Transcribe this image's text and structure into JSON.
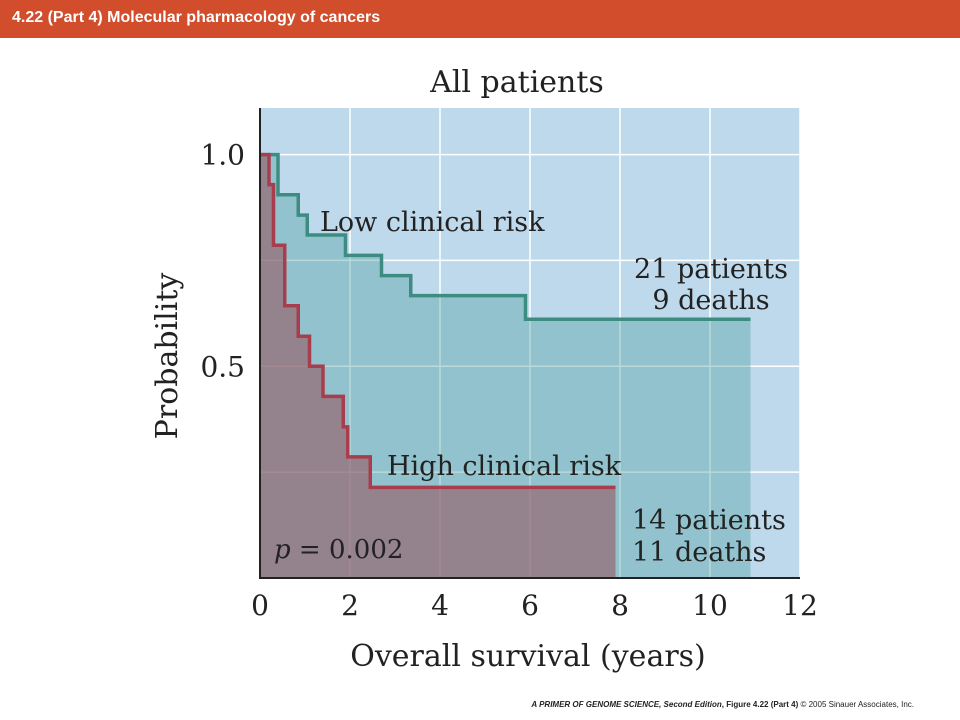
{
  "header": {
    "title": "4.22 (Part 4)  Molecular pharmacology of cancers"
  },
  "footer": {
    "book": "A PRIMER OF GENOME SCIENCE, Second Edition",
    "figure": ", Figure 4.22 (Part 4)",
    "copyright": "  © 2005 Sinauer Associates, Inc."
  },
  "colors": {
    "plot_bg": "#bed9ec",
    "low_risk": "#3c8c82",
    "high_risk": "#a83d4e",
    "header_bg": "#d14d2c"
  },
  "chart_data": {
    "type": "line",
    "step": true,
    "title": "All patients",
    "xlabel": "Overall survival (years)",
    "ylabel": "Probability",
    "xlim": [
      0,
      12
    ],
    "ylim": [
      0,
      1.11
    ],
    "x_ticks": [
      "0",
      "2",
      "4",
      "6",
      "8",
      "10",
      "12"
    ],
    "y_ticks": [
      {
        "value": 0.5,
        "label": "0.5"
      },
      {
        "value": 1.0,
        "label": "1.0"
      }
    ],
    "grid": true,
    "series": [
      {
        "name": "Low clinical risk",
        "points": [
          [
            0,
            1.0
          ],
          [
            0.4,
            1.0
          ],
          [
            0.4,
            0.905
          ],
          [
            0.85,
            0.905
          ],
          [
            0.85,
            0.857
          ],
          [
            1.05,
            0.857
          ],
          [
            1.05,
            0.81
          ],
          [
            1.9,
            0.81
          ],
          [
            1.9,
            0.762
          ],
          [
            2.7,
            0.762
          ],
          [
            2.7,
            0.714
          ],
          [
            3.35,
            0.714
          ],
          [
            3.35,
            0.667
          ],
          [
            5.9,
            0.667
          ],
          [
            5.9,
            0.611
          ],
          [
            10.9,
            0.611
          ]
        ],
        "annotation": [
          "21 patients",
          "9 deaths"
        ]
      },
      {
        "name": "High clinical risk",
        "points": [
          [
            0,
            1.0
          ],
          [
            0.2,
            1.0
          ],
          [
            0.2,
            0.929
          ],
          [
            0.3,
            0.929
          ],
          [
            0.3,
            0.786
          ],
          [
            0.55,
            0.786
          ],
          [
            0.55,
            0.643
          ],
          [
            0.85,
            0.643
          ],
          [
            0.85,
            0.571
          ],
          [
            1.1,
            0.571
          ],
          [
            1.1,
            0.5
          ],
          [
            1.4,
            0.5
          ],
          [
            1.4,
            0.429
          ],
          [
            1.85,
            0.429
          ],
          [
            1.85,
            0.357
          ],
          [
            1.95,
            0.357
          ],
          [
            1.95,
            0.286
          ],
          [
            2.45,
            0.286
          ],
          [
            2.45,
            0.214
          ],
          [
            7.9,
            0.214
          ]
        ],
        "annotation": [
          "14 patients",
          "11 deaths"
        ]
      }
    ],
    "p_value_label": "p",
    "p_value_text": " = 0.002"
  }
}
